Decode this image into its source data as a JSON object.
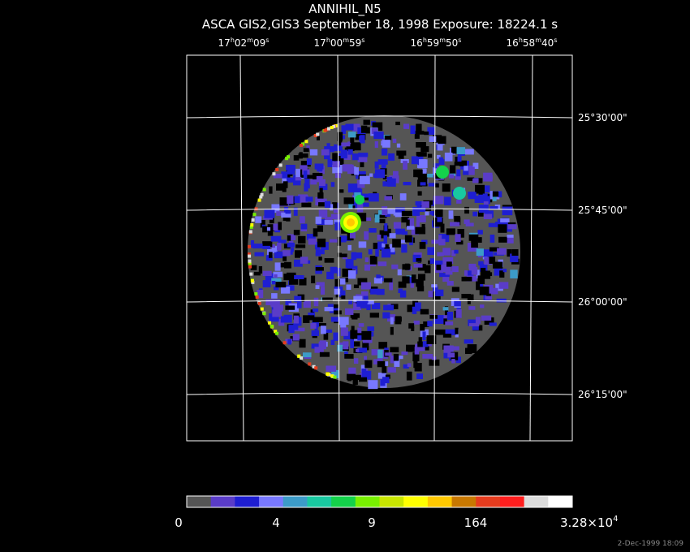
{
  "title": "ANNIHIL_N5",
  "subtitle": "ASCA GIS2,GIS3 September 18, 1998 Exposure: 18224.1 s",
  "ra_labels": [
    [
      "17",
      "h",
      "02",
      "m",
      "09",
      "s"
    ],
    [
      "17",
      "h",
      "00",
      "m",
      "59",
      "s"
    ],
    [
      "16",
      "h",
      "59",
      "m",
      "50",
      "s"
    ],
    [
      "16",
      "h",
      "58",
      "m",
      "40",
      "s"
    ]
  ],
  "dec_labels": [
    "25°30'00\"",
    "25°45'00\"",
    "26°00'00\"",
    "26°15'00\""
  ],
  "colorbar": {
    "colors": [
      "#555555",
      "#5a3cc8",
      "#1e1ed2",
      "#7878ff",
      "#3c9bc8",
      "#19c8a0",
      "#14d24b",
      "#78f000",
      "#c8e600",
      "#ffff00",
      "#ffc800",
      "#c87800",
      "#e63c1e",
      "#ff1e1e",
      "#dcdcdc",
      "#ffffff"
    ],
    "labels": [
      [
        "0"
      ],
      [
        "4"
      ],
      [
        "9"
      ],
      [
        "164"
      ],
      [
        "3.28×10",
        "4"
      ]
    ]
  },
  "timestamp": "2-Dec-1999 18:09"
}
